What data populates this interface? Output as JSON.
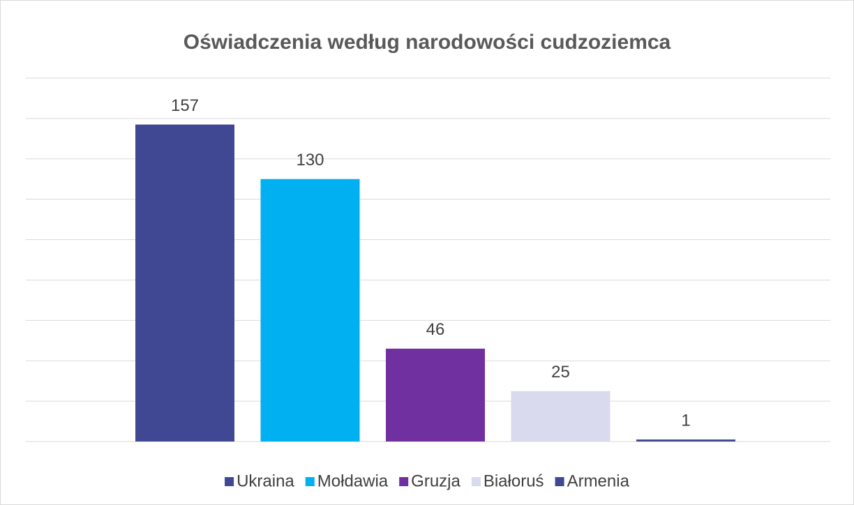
{
  "chart_data": {
    "type": "bar",
    "title": "Oświadczenia według narodowości cudzoziemca",
    "series": [
      {
        "name": "Ukraina",
        "color": "#404893",
        "values": [
          157
        ]
      },
      {
        "name": "Mołdawia",
        "color": "#00b0f0",
        "values": [
          130
        ]
      },
      {
        "name": "Gruzja",
        "color": "#7030a0",
        "values": [
          46
        ]
      },
      {
        "name": "Białoruś",
        "color": "#d9daee",
        "values": [
          25
        ]
      },
      {
        "name": "Armenia",
        "color": "#404893",
        "values": [
          1
        ]
      }
    ],
    "ylim": [
      0,
      180
    ],
    "yticks": [
      0,
      20,
      40,
      60,
      80,
      100,
      120,
      140,
      160,
      180
    ],
    "grid": true,
    "legend": "bottom"
  }
}
